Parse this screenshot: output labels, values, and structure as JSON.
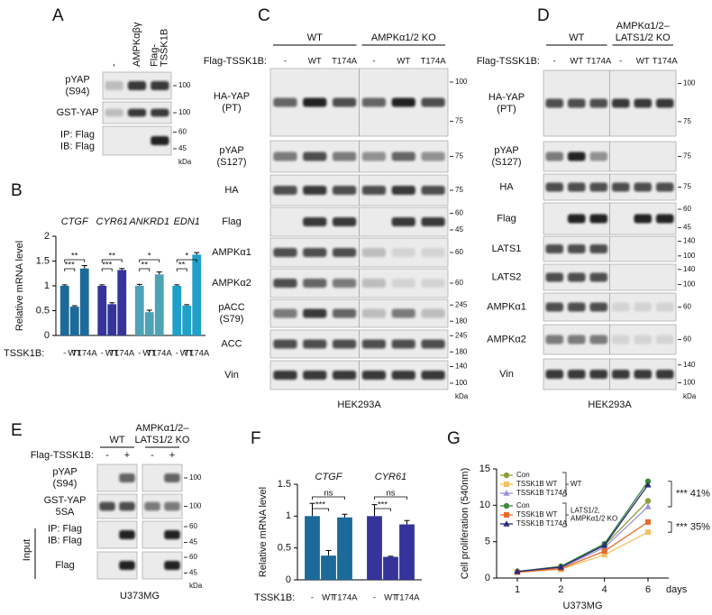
{
  "panel_a": {
    "letter": "A",
    "lanes": [
      [
        "-"
      ],
      [
        "AMPKαβγ"
      ],
      [
        "Flag-",
        "TSSK1B"
      ]
    ],
    "rows": [
      {
        "label": [
          "pYAP",
          "(S94)"
        ],
        "markers": [
          "100"
        ]
      },
      {
        "label": [
          "GST-YAP"
        ],
        "markers": [
          "100"
        ]
      },
      {
        "label": [
          "IP: Flag",
          "IB: Flag"
        ],
        "markers": [
          "60",
          "45"
        ]
      }
    ],
    "unit": "kDa"
  },
  "panel_c": {
    "letter": "C",
    "groups": [
      [
        "WT"
      ],
      [
        "AMPKα1/2 KO"
      ]
    ],
    "lane_title": "Flag-TSSK1B:",
    "lanes": [
      "-",
      "WT",
      "T174A",
      "-",
      "WT",
      "T174A"
    ],
    "rows": [
      {
        "label": [
          "HA-YAP",
          "(PT)"
        ],
        "markers": [
          "100",
          "75"
        ]
      },
      {
        "label": [
          "pYAP",
          "(S127)"
        ],
        "markers": [
          "75"
        ]
      },
      {
        "label": [
          "HA"
        ],
        "markers": [
          "75"
        ]
      },
      {
        "label": [
          "Flag"
        ],
        "markers": [
          "60",
          "45"
        ]
      },
      {
        "label": [
          "AMPKα1"
        ],
        "markers": [
          "60"
        ]
      },
      {
        "label": [
          "AMPKα2"
        ],
        "markers": [
          "60"
        ]
      },
      {
        "label": [
          "pACC",
          "(S79)"
        ],
        "markers": [
          "245",
          "180"
        ]
      },
      {
        "label": [
          "ACC"
        ],
        "markers": [
          "245",
          "180"
        ]
      },
      {
        "label": [
          "Vin"
        ],
        "markers": [
          "140",
          "100"
        ]
      }
    ],
    "unit": "kDa",
    "cell_line": "HEK293A"
  },
  "panel_d": {
    "letter": "D",
    "groups": [
      [
        "WT"
      ],
      [
        "AMPKα1/2–",
        "LATS1/2 KO"
      ]
    ],
    "lane_title": "Flag-TSSK1B:",
    "lanes": [
      "-",
      "WT",
      "T174A",
      "-",
      "WT",
      "T174A"
    ],
    "rows": [
      {
        "label": [
          "HA-YAP",
          "(PT)"
        ],
        "markers": [
          "100",
          "75"
        ]
      },
      {
        "label": [
          "pYAP",
          "(S127)"
        ],
        "markers": [
          "75"
        ]
      },
      {
        "label": [
          "HA"
        ],
        "markers": [
          "75"
        ]
      },
      {
        "label": [
          "Flag"
        ],
        "markers": [
          "60",
          "45"
        ]
      },
      {
        "label": [
          "LATS1"
        ],
        "markers": [
          "140",
          "100"
        ]
      },
      {
        "label": [
          "LATS2"
        ],
        "markers": [
          "140",
          "100"
        ]
      },
      {
        "label": [
          "AMPKα1"
        ],
        "markers": [
          "60"
        ]
      },
      {
        "label": [
          "AMPKα2"
        ],
        "markers": [
          "60"
        ]
      },
      {
        "label": [
          "Vin"
        ],
        "markers": [
          "140",
          "100"
        ]
      }
    ],
    "unit": "kDa",
    "cell_line": "HEK293A"
  },
  "panel_e": {
    "letter": "E",
    "groups": [
      [
        "WT"
      ],
      [
        "AMPKα1/2–",
        "LATS1/2 KO"
      ]
    ],
    "lane_title": "Flag-TSSK1B:",
    "lanes": [
      "-",
      "+",
      "-",
      "+"
    ],
    "rows": [
      {
        "label": [
          "pYAP",
          "(S94)"
        ],
        "markers": [
          "100"
        ]
      },
      {
        "label": [
          "GST-YAP",
          "5SA"
        ],
        "markers": [
          "100"
        ]
      },
      {
        "label": [
          "IP: Flag",
          "IB: Flag"
        ],
        "markers": [
          "60",
          "45"
        ]
      },
      {
        "label": [
          "Flag"
        ],
        "markers": [
          "60",
          "45"
        ],
        "side_label": "Input"
      }
    ],
    "unit": "kDa",
    "cell_line": "U373MG"
  },
  "chart_data": [
    {
      "letter": "B",
      "type": "bar",
      "ylabel": "Relative mRNA level",
      "ylim": [
        0,
        2
      ],
      "yticks": [
        0,
        0.5,
        1,
        1.5,
        2
      ],
      "x_label": "TSSK1B:",
      "conditions": [
        "-",
        "WT",
        "T174A"
      ],
      "groups": [
        {
          "name": "CTGF",
          "color": "#1c6a9a",
          "values": [
            1,
            0.58,
            1.35
          ],
          "errors": [
            0.02,
            0.02,
            0.06
          ],
          "significance": [
            "**",
            "***"
          ]
        },
        {
          "name": "CYR61",
          "color": "#34349a",
          "values": [
            1,
            0.63,
            1.32
          ],
          "errors": [
            0.02,
            0.03,
            0.03
          ],
          "significance": [
            "**",
            "***"
          ]
        },
        {
          "name": "ANKRD1",
          "color": "#4ea3b6",
          "values": [
            1,
            0.47,
            1.23
          ],
          "errors": [
            0.03,
            0.04,
            0.05
          ],
          "significance": [
            "*",
            "**"
          ]
        },
        {
          "name": "EDN1",
          "color": "#1ea0c8",
          "values": [
            1,
            0.6,
            1.63
          ],
          "errors": [
            0.02,
            0.02,
            0.04
          ],
          "significance": [
            "*",
            "**"
          ]
        }
      ]
    },
    {
      "letter": "F",
      "type": "bar",
      "ylabel": "Relative mRNA level",
      "ylim": [
        0,
        1.5
      ],
      "yticks": [
        0,
        0.5,
        1,
        1.5
      ],
      "x_label": "TSSK1B:",
      "conditions": [
        "-",
        "WT",
        "T174A"
      ],
      "groups": [
        {
          "name": "CTGF",
          "color": "#1c6a9a",
          "values": [
            1,
            0.38,
            0.98
          ],
          "errors": [
            0.2,
            0.08,
            0.05
          ],
          "significance": [
            "ns",
            "***"
          ]
        },
        {
          "name": "CYR61",
          "color": "#34349a",
          "values": [
            1,
            0.36,
            0.87
          ],
          "errors": [
            0.18,
            0.01,
            0.06
          ],
          "significance": [
            "ns",
            "***"
          ]
        }
      ]
    },
    {
      "letter": "G",
      "type": "line",
      "ylabel": "Cell proliferation (540nm)",
      "x_label": "days",
      "cell_line": "U373MG",
      "categories": [
        "1",
        "2",
        "4",
        "6"
      ],
      "ylim": [
        0,
        15
      ],
      "yticks": [
        0,
        5,
        10,
        15
      ],
      "legend_groups": [
        {
          "label": [
            "WT"
          ],
          "series": [
            {
              "name": "Con",
              "color": "#8aa03c",
              "marker": "circle",
              "values": [
                0.9,
                1.6,
                4.5,
                10.6
              ]
            },
            {
              "name": "TSSK1B WT",
              "color": "#f7c060",
              "marker": "square",
              "values": [
                0.8,
                1.2,
                3.2,
                6.3
              ]
            },
            {
              "name": "TSSK1B T174A",
              "color": "#a08fd8",
              "marker": "triangle",
              "values": [
                0.9,
                1.4,
                4.2,
                9.8
              ]
            }
          ]
        },
        {
          "label": [
            "LATS1/2,",
            "AMPKα1/2 KO"
          ],
          "series": [
            {
              "name": "Con",
              "color": "#3a8a3a",
              "marker": "circle",
              "values": [
                0.9,
                1.6,
                4.7,
                13.3
              ]
            },
            {
              "name": "TSSK1B WT",
              "color": "#e86a2a",
              "marker": "square",
              "values": [
                0.8,
                1.3,
                3.7,
                7.7
              ]
            },
            {
              "name": "TSSK1B T174A",
              "color": "#252a7a",
              "marker": "triangle",
              "values": [
                0.9,
                1.5,
                4.5,
                12.8
              ]
            }
          ]
        }
      ],
      "annotations": [
        "*** 41%",
        "*** 35%"
      ]
    }
  ]
}
